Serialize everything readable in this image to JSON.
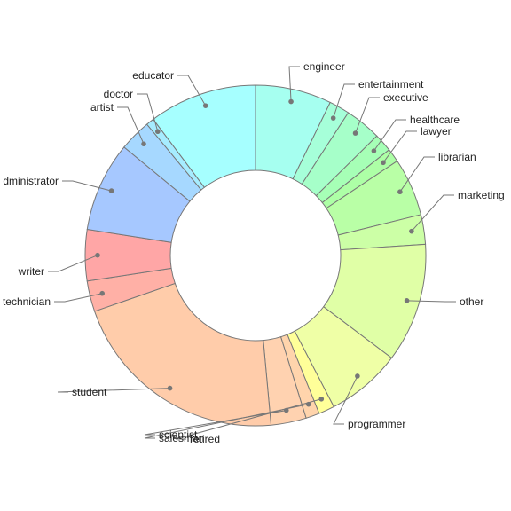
{
  "chart_data": {
    "type": "pie",
    "donut": true,
    "title": "",
    "legend": "none",
    "categories": [
      "engineer",
      "entertainment",
      "executive",
      "healthcare",
      "lawyer",
      "librarian",
      "marketing",
      "other",
      "programmer",
      "retired",
      "salesman",
      "scientist",
      "student",
      "technician",
      "writer",
      "administrator",
      "artist",
      "doctor",
      "educator"
    ],
    "values": [
      67,
      18,
      32,
      16,
      12,
      51,
      26,
      105,
      66,
      14,
      12,
      31,
      196,
      27,
      45,
      79,
      28,
      7,
      95
    ],
    "labels": [
      "engineer",
      "entertainment",
      "executive",
      "healthcare",
      "lawyer",
      "librarian",
      "marketing",
      "other",
      "programmer",
      "retired",
      "salesman",
      "scientist",
      "student",
      "technician",
      "writer",
      "dministrator",
      "artist",
      "doctor",
      "educator"
    ],
    "colors": [
      "#a6fff0",
      "#a6ffd9",
      "#a6ffc9",
      "#a6ffb6",
      "#adffa6",
      "#b9ffa6",
      "#ccffa6",
      "#e0ffa6",
      "#efffa6",
      "#ffff99",
      "#ffd4ac",
      "#ffd2b0",
      "#ffccaa",
      "#ffb0a6",
      "#ffa6a6",
      "#a6c8ff",
      "#a6d8ff",
      "#a6ecff",
      "#a6ffff"
    ]
  }
}
